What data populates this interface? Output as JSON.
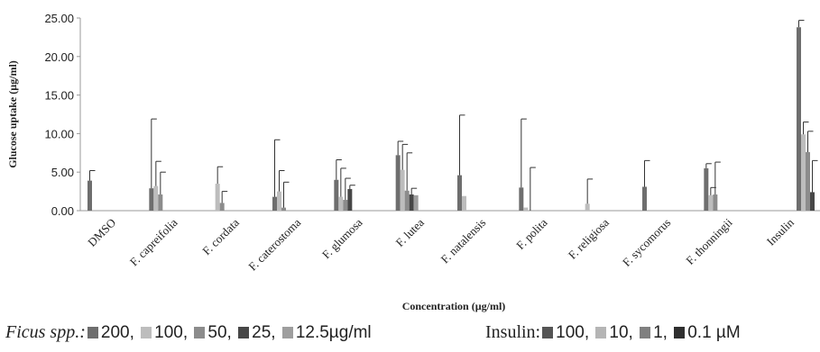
{
  "chart_data": {
    "type": "bar",
    "title": "",
    "xlabel": "Concentration  (µg/ml)",
    "ylabel": "Glucose uptake (µg/ml)",
    "ylim": [
      0,
      25
    ],
    "yticks": [
      "0.00",
      "5.00",
      "10.00",
      "15.00",
      "20.00",
      "25.00"
    ],
    "grid": false,
    "categories": [
      "DMSO",
      "F. capreifolia",
      "F. cordata",
      "F. caterostoma",
      "F. glumosa",
      "F. lutea",
      "F. natalensis",
      "F. polita",
      "F. religiosa",
      "F. sycomorus",
      "F. thonningii",
      "Insulin"
    ],
    "series": [
      {
        "color": "#6e6e6e",
        "values": [
          3.9,
          2.9,
          null,
          1.8,
          4.0,
          7.2,
          4.6,
          3.0,
          null,
          3.1,
          5.5,
          23.8
        ],
        "errors": [
          1.3,
          9.0,
          null,
          7.4,
          2.6,
          1.8,
          7.8,
          8.9,
          null,
          3.4,
          0.6,
          0.9
        ]
      },
      {
        "color": "#bdbdbd",
        "values": [
          null,
          3.2,
          3.5,
          2.5,
          1.8,
          5.3,
          1.9,
          0.4,
          0.9,
          null,
          2.0,
          9.9
        ],
        "errors": [
          null,
          3.2,
          2.2,
          2.7,
          3.7,
          3.3,
          null,
          null,
          3.2,
          null,
          1.0,
          1.6
        ]
      },
      {
        "color": "#8c8c8c",
        "values": [
          null,
          2.1,
          1.0,
          0.4,
          1.4,
          2.6,
          null,
          null,
          null,
          null,
          2.1,
          7.6
        ],
        "errors": [
          null,
          2.9,
          1.5,
          3.3,
          2.8,
          4.9,
          null,
          5.6,
          null,
          null,
          4.2,
          2.7
        ]
      },
      {
        "color": "#474747",
        "values": [
          null,
          null,
          null,
          null,
          2.8,
          2.1,
          null,
          null,
          null,
          null,
          null,
          2.4
        ],
        "errors": [
          null,
          null,
          null,
          null,
          0.5,
          0.8,
          null,
          null,
          null,
          null,
          null,
          4.1
        ]
      },
      {
        "color": "#9e9e9e",
        "values": [
          null,
          null,
          null,
          null,
          null,
          2.0,
          null,
          null,
          null,
          null,
          null,
          null
        ],
        "errors": [
          null,
          null,
          null,
          null,
          null,
          null,
          null,
          null,
          null,
          null,
          null,
          null
        ]
      }
    ],
    "legend": {
      "placement": "bottom",
      "groups": [
        {
          "title": "Ficus spp.:",
          "italic": true,
          "items": [
            {
              "label": "200,",
              "color": "#6e6e6e"
            },
            {
              "label": "100,",
              "color": "#bdbdbd"
            },
            {
              "label": "50,",
              "color": "#8c8c8c"
            },
            {
              "label": "25,",
              "color": "#474747"
            },
            {
              "label": "12.5µg/ml",
              "color": "#9e9e9e"
            }
          ]
        },
        {
          "title": "Insulin:",
          "italic": false,
          "items": [
            {
              "label": "100,",
              "color": "#555555"
            },
            {
              "label": "10,",
              "color": "#b5b5b5"
            },
            {
              "label": "1,",
              "color": "#808080"
            },
            {
              "label": "0.1 µM",
              "color": "#2f2f2f"
            }
          ]
        }
      ]
    }
  }
}
